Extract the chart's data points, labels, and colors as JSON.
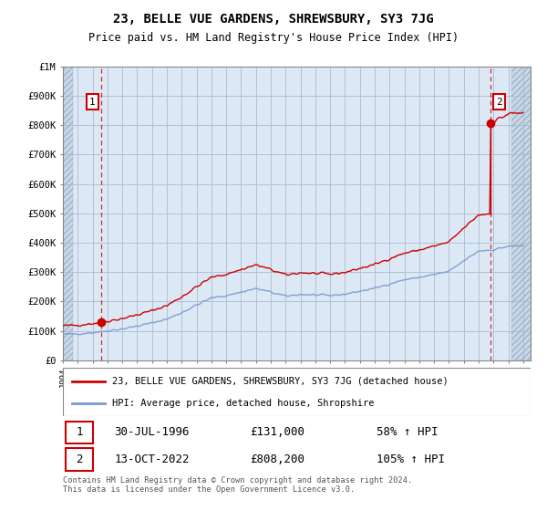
{
  "title": "23, BELLE VUE GARDENS, SHREWSBURY, SY3 7JG",
  "subtitle": "Price paid vs. HM Land Registry's House Price Index (HPI)",
  "legend_line1": "23, BELLE VUE GARDENS, SHREWSBURY, SY3 7JG (detached house)",
  "legend_line2": "HPI: Average price, detached house, Shropshire",
  "footnote": "Contains HM Land Registry data © Crown copyright and database right 2024.\nThis data is licensed under the Open Government Licence v3.0.",
  "sale1_date": "30-JUL-1996",
  "sale1_price": 131000,
  "sale1_label": "58% ↑ HPI",
  "sale2_date": "13-OCT-2022",
  "sale2_price": 808200,
  "sale2_label": "105% ↑ HPI",
  "property_line_color": "#cc0000",
  "hpi_line_color": "#7799cc",
  "sale_marker_color": "#cc0000",
  "background_color": "#dde8f5",
  "hatch_bg_color": "#c8d8e8",
  "grid_color": "#b0c0d8",
  "ylim": [
    0,
    1000000
  ],
  "xlim_start": 1994.0,
  "xlim_end": 2025.5,
  "sale1_x": 1996.58,
  "sale2_x": 2022.79
}
